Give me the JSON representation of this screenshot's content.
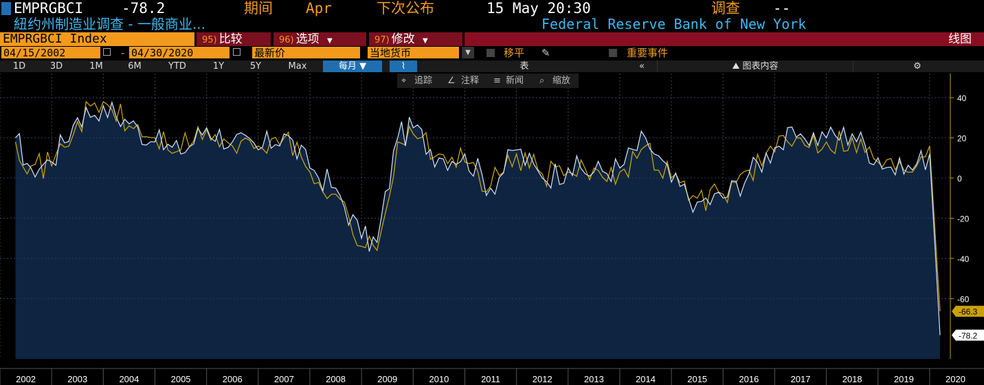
{
  "header": {
    "ticker": "EMPRGBCI",
    "last_value": "-78.2",
    "period_label": "期间",
    "period_value": "Apr",
    "next_release_label": "下次公布",
    "next_release_value": "15 May 20:30",
    "survey_label": "调查",
    "survey_value": "--",
    "description": "紐约州制造业调查 - 一般商业...",
    "source": "Federal Reserve Bank of New York"
  },
  "command_bar": {
    "security": "EMPRGBCI Index",
    "compare": {
      "num": "95)",
      "label": "比较"
    },
    "options": {
      "num": "96)",
      "label": "选项"
    },
    "modify": {
      "num": "97)",
      "label": "修改"
    },
    "chart_type": "线图"
  },
  "settings": {
    "start_date": "04/15/2002",
    "end_date": "04/30/2020",
    "field": "最新价",
    "currency": "当地货币",
    "shift": "移平",
    "events": "重要事件"
  },
  "periods": [
    "1D",
    "3D",
    "1M",
    "6M",
    "YTD",
    "1Y",
    "5Y",
    "Max"
  ],
  "frequency": "每月",
  "table_label": "表",
  "chart_content_label": "图表内容",
  "annotation_tools": [
    "追踪",
    "注释",
    "新闻",
    "缩放"
  ],
  "colors": {
    "accent": "#f39a1c",
    "line_white": "#c8d8f0",
    "line_yellow": "#c9a20a",
    "area": "#0e2440",
    "link_blue": "#3fb8f0"
  },
  "chart_data": {
    "type": "line",
    "x_start": "2002-04",
    "x_end": "2020-04",
    "x_ticks": [
      "2002",
      "2003",
      "2004",
      "2005",
      "2006",
      "2007",
      "2008",
      "2009",
      "2010",
      "2011",
      "2012",
      "2013",
      "2014",
      "2015",
      "2016",
      "2017",
      "2018",
      "2019",
      "2020"
    ],
    "y_ticks": [
      "40",
      "20",
      "0",
      "-20",
      "-40",
      "-60"
    ],
    "ylim": [
      -90,
      52
    ],
    "series": [
      {
        "name": "EMPRGBCI Index",
        "style": "white-area",
        "annual_points": [
          [
            2002.3,
            20
          ],
          [
            2002.6,
            5
          ],
          [
            2003.0,
            8
          ],
          [
            2003.5,
            30
          ],
          [
            2004.0,
            36
          ],
          [
            2004.5,
            27
          ],
          [
            2005.0,
            18
          ],
          [
            2005.5,
            12
          ],
          [
            2006.0,
            25
          ],
          [
            2006.5,
            18
          ],
          [
            2007.0,
            14
          ],
          [
            2007.5,
            22
          ],
          [
            2008.0,
            5
          ],
          [
            2008.5,
            -5
          ],
          [
            2009.0,
            -30
          ],
          [
            2009.3,
            -32
          ],
          [
            2009.7,
            20
          ],
          [
            2010.0,
            25
          ],
          [
            2010.5,
            10
          ],
          [
            2011.0,
            12
          ],
          [
            2011.5,
            -5
          ],
          [
            2012.0,
            14
          ],
          [
            2012.5,
            0
          ],
          [
            2013.0,
            5
          ],
          [
            2013.5,
            3
          ],
          [
            2014.0,
            5
          ],
          [
            2014.5,
            20
          ],
          [
            2015.0,
            -2
          ],
          [
            2015.5,
            -12
          ],
          [
            2016.0,
            -10
          ],
          [
            2016.5,
            2
          ],
          [
            2017.0,
            15
          ],
          [
            2017.5,
            22
          ],
          [
            2018.0,
            20
          ],
          [
            2018.5,
            22
          ],
          [
            2019.0,
            10
          ],
          [
            2019.5,
            2
          ],
          [
            2020.0,
            12
          ],
          [
            2020.2,
            -78.2
          ]
        ],
        "last": "-78.2"
      },
      {
        "name": "Yellow series",
        "style": "yellow-line",
        "annual_points": [
          [
            2002.3,
            18
          ],
          [
            2002.6,
            6
          ],
          [
            2003.0,
            6
          ],
          [
            2003.5,
            28
          ],
          [
            2004.0,
            38
          ],
          [
            2004.5,
            26
          ],
          [
            2005.0,
            20
          ],
          [
            2005.5,
            14
          ],
          [
            2006.0,
            24
          ],
          [
            2006.5,
            16
          ],
          [
            2007.0,
            16
          ],
          [
            2007.5,
            20
          ],
          [
            2008.0,
            3
          ],
          [
            2008.5,
            -8
          ],
          [
            2009.0,
            -34
          ],
          [
            2009.3,
            -36
          ],
          [
            2009.7,
            18
          ],
          [
            2010.0,
            22
          ],
          [
            2010.5,
            12
          ],
          [
            2011.0,
            8
          ],
          [
            2011.5,
            -4
          ],
          [
            2012.0,
            12
          ],
          [
            2012.5,
            2
          ],
          [
            2013.0,
            3
          ],
          [
            2013.5,
            5
          ],
          [
            2014.0,
            3
          ],
          [
            2014.5,
            16
          ],
          [
            2015.0,
            0
          ],
          [
            2015.5,
            -10
          ],
          [
            2016.0,
            -8
          ],
          [
            2016.5,
            4
          ],
          [
            2017.0,
            13
          ],
          [
            2017.5,
            20
          ],
          [
            2018.0,
            18
          ],
          [
            2018.5,
            20
          ],
          [
            2019.0,
            8
          ],
          [
            2019.5,
            4
          ],
          [
            2020.0,
            16
          ],
          [
            2020.2,
            -66.3
          ]
        ],
        "last": "-66.3"
      }
    ]
  }
}
